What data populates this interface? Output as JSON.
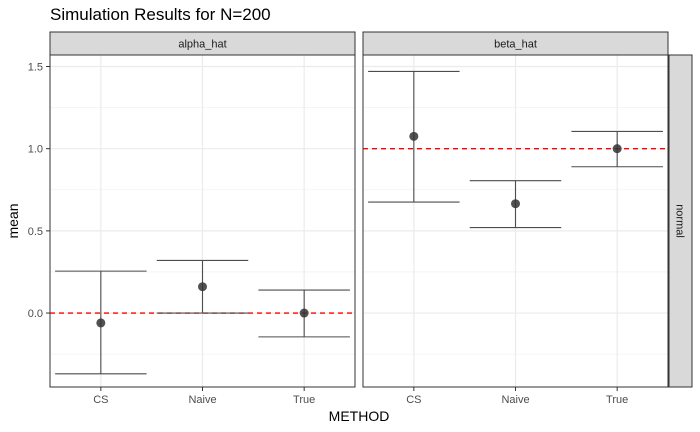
{
  "chart_data": {
    "type": "scatter",
    "title": "Simulation Results for N=200",
    "xlabel": "METHOD",
    "ylabel": "mean",
    "categories": [
      "CS",
      "Naive",
      "True"
    ],
    "ylim": [
      -0.45,
      1.57
    ],
    "yticks": [
      0.0,
      0.5,
      1.0,
      1.5
    ],
    "ytick_labels": [
      "0.0",
      "0.5",
      "1.0",
      "1.5"
    ],
    "grid": true,
    "row_strip": "normal",
    "reference_line_color": "#ff0000",
    "point_color": "#333333",
    "errorbar_color": "#4d4d4d",
    "panels": [
      {
        "label": "alpha_hat",
        "reference": 0.0,
        "points": [
          {
            "x": "CS",
            "mean": -0.06,
            "lower": -0.37,
            "upper": 0.255
          },
          {
            "x": "Naive",
            "mean": 0.16,
            "lower": 0.0,
            "upper": 0.32
          },
          {
            "x": "True",
            "mean": 0.0,
            "lower": -0.145,
            "upper": 0.14
          }
        ]
      },
      {
        "label": "beta_hat",
        "reference": 1.0,
        "points": [
          {
            "x": "CS",
            "mean": 1.075,
            "lower": 0.675,
            "upper": 1.47
          },
          {
            "x": "Naive",
            "mean": 0.665,
            "lower": 0.52,
            "upper": 0.805
          },
          {
            "x": "True",
            "mean": 1.0,
            "lower": 0.89,
            "upper": 1.105
          }
        ]
      }
    ]
  }
}
